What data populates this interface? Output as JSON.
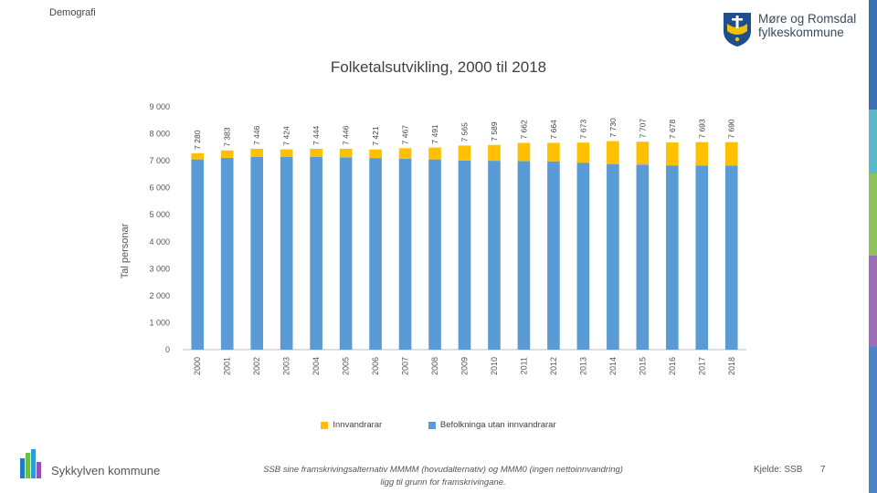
{
  "header": {
    "section": "Demografi"
  },
  "logo": {
    "line1": "Møre og Romsdal",
    "line2": "fylkeskommune"
  },
  "chart_data": {
    "type": "bar",
    "stacked": true,
    "title": "Folketalsutvikling, 2000 til 2018",
    "xlabel": "",
    "ylabel": "Tal personar",
    "ylim": [
      0,
      9000
    ],
    "yticks": [
      "0",
      "1 000",
      "2 000",
      "3 000",
      "4 000",
      "5 000",
      "6 000",
      "7 000",
      "8 000",
      "9 000"
    ],
    "categories": [
      "2000",
      "2001",
      "2002",
      "2003",
      "2004",
      "2005",
      "2006",
      "2007",
      "2008",
      "2009",
      "2010",
      "2011",
      "2012",
      "2013",
      "2014",
      "2015",
      "2016",
      "2017",
      "2018"
    ],
    "series": [
      {
        "name": "Befolkninga utan innvandrarar",
        "color": "#5b9bd5",
        "values": [
          7050,
          7110,
          7140,
          7140,
          7140,
          7130,
          7100,
          7080,
          7050,
          7010,
          7000,
          6990,
          6980,
          6920,
          6880,
          6860,
          6830,
          6820,
          6820
        ]
      },
      {
        "name": "Innvandrarar",
        "color": "#ffc000",
        "values": [
          230,
          273,
          306,
          284,
          304,
          316,
          321,
          387,
          441,
          555,
          589,
          672,
          684,
          753,
          850,
          847,
          848,
          873,
          870
        ]
      }
    ],
    "totals": [
      "7 280",
      "7 383",
      "7 446",
      "7 424",
      "7 444",
      "7 446",
      "7 421",
      "7 467",
      "7 491",
      "7 565",
      "7 589",
      "7 662",
      "7 664",
      "7 673",
      "7 730",
      "7 707",
      "7 678",
      "7 693",
      "7 690"
    ],
    "grid": false,
    "legend": "bottom"
  },
  "footer": {
    "municipality": "Sykkylven kommune",
    "footnote_line1": "SSB sine framskrivingsalternativ MMMM (hovudalternativ) og MMM0 (ingen nettoinnvandring)",
    "footnote_line2": "ligg til grunn for framskrivingane.",
    "source": "Kjelde: SSB",
    "page": "7"
  }
}
